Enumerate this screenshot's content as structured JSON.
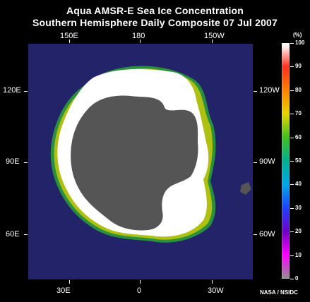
{
  "title_line1": "Aqua AMSR-E Sea Ice Concentration",
  "title_line2": "Southern Hemisphere Daily Composite  07 Jul 2007",
  "longitude_labels": {
    "top": [
      "150E",
      "180",
      "150W"
    ],
    "left": [
      "120E",
      "90E",
      "60E"
    ],
    "right": [
      "120W",
      "90W",
      "60W"
    ],
    "bottom": [
      "30E",
      "0",
      "30W"
    ]
  },
  "colorbar": {
    "unit": "(%)",
    "ticks": [
      "100",
      "90",
      "80",
      "70",
      "60",
      "50",
      "40",
      "30",
      "20",
      "10",
      "0"
    ],
    "colors": [
      "#ffffff",
      "#ff3020",
      "#ff8000",
      "#e8d400",
      "#40c020",
      "#00b090",
      "#00a8e8",
      "#2040ff",
      "#7000c8",
      "#ff00ff",
      "#909090"
    ]
  },
  "ocean_color": "#23236a",
  "land_color": "#555555",
  "ice_color": "#ffffff",
  "credit": "NASA / NSIDC"
}
